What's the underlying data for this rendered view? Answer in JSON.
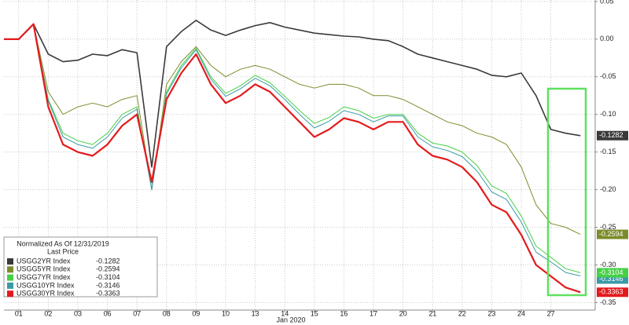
{
  "chart_data": {
    "type": "line",
    "x": [
      -0.5,
      0,
      0.5,
      1,
      1.5,
      2,
      2.5,
      3,
      3.5,
      4,
      4.5,
      5,
      5.5,
      6,
      6.5,
      7,
      7.5,
      8,
      8.5,
      9,
      9.5,
      10,
      10.5,
      11,
      11.5,
      12,
      12.5,
      13,
      13.5,
      14,
      14.5,
      15,
      15.5,
      16,
      16.5,
      17,
      17.5,
      18,
      18.5,
      19
    ],
    "x_label": "Jan 2020",
    "xlim": [
      -0.5,
      19.5
    ],
    "xticks": [
      {
        "value": 0,
        "label": "01"
      },
      {
        "value": 1,
        "label": "02"
      },
      {
        "value": 2,
        "label": "03"
      },
      {
        "value": 3,
        "label": "06"
      },
      {
        "value": 4,
        "label": "07"
      },
      {
        "value": 5,
        "label": "08"
      },
      {
        "value": 6,
        "label": "09"
      },
      {
        "value": 7,
        "label": "10"
      },
      {
        "value": 8,
        "label": "13"
      },
      {
        "value": 9,
        "label": "14"
      },
      {
        "value": 10,
        "label": "15"
      },
      {
        "value": 11,
        "label": "16"
      },
      {
        "value": 12,
        "label": "17"
      },
      {
        "value": 13,
        "label": "20"
      },
      {
        "value": 14,
        "label": "21"
      },
      {
        "value": 15,
        "label": "22"
      },
      {
        "value": 16,
        "label": "23"
      },
      {
        "value": 17,
        "label": "24"
      },
      {
        "value": 18,
        "label": "27"
      }
    ],
    "ylim": [
      -0.36,
      0.052
    ],
    "yticks": [
      0.05,
      {
        "value": 0,
        "label": "0.00"
      },
      -0.05,
      {
        "value": -0.1,
        "label": "-0.10"
      },
      -0.15,
      {
        "value": -0.2,
        "label": "-0.20"
      },
      -0.25,
      {
        "value": -0.3,
        "label": "-0.30"
      },
      -0.35
    ],
    "grid": true,
    "legend_title": "Normalized As Of 12/31/2019",
    "legend_subtitle": "Last Price",
    "series": [
      {
        "name": "USGG2YR Index",
        "color": "#3a3a3a",
        "values": [
          0,
          0,
          0.02,
          -0.02,
          -0.03,
          -0.028,
          -0.02,
          -0.022,
          -0.014,
          -0.018,
          -0.17,
          -0.01,
          0.01,
          0.025,
          0.012,
          0.005,
          0.012,
          0.018,
          0.022,
          0.016,
          0.012,
          0.008,
          0.006,
          0.004,
          0.003,
          0,
          -0.002,
          -0.01,
          -0.02,
          -0.025,
          -0.03,
          -0.035,
          -0.04,
          -0.048,
          -0.05,
          -0.045,
          -0.075,
          -0.12,
          -0.125,
          -0.1282
        ]
      },
      {
        "name": "USGG5YR Index",
        "color": "#7d8c2a",
        "values": [
          0,
          0,
          0.02,
          -0.07,
          -0.1,
          -0.09,
          -0.085,
          -0.09,
          -0.08,
          -0.075,
          -0.2,
          -0.06,
          -0.03,
          -0.01,
          -0.035,
          -0.05,
          -0.04,
          -0.035,
          -0.04,
          -0.05,
          -0.06,
          -0.065,
          -0.06,
          -0.06,
          -0.065,
          -0.075,
          -0.075,
          -0.08,
          -0.09,
          -0.1,
          -0.11,
          -0.115,
          -0.125,
          -0.13,
          -0.14,
          -0.17,
          -0.22,
          -0.245,
          -0.25,
          -0.2594
        ]
      },
      {
        "name": "USGG7YR Index",
        "color": "#46d046",
        "values": [
          0,
          0,
          0.02,
          -0.08,
          -0.125,
          -0.135,
          -0.14,
          -0.125,
          -0.1,
          -0.09,
          -0.2,
          -0.07,
          -0.035,
          -0.012,
          -0.05,
          -0.072,
          -0.062,
          -0.048,
          -0.058,
          -0.076,
          -0.095,
          -0.112,
          -0.104,
          -0.09,
          -0.095,
          -0.105,
          -0.1,
          -0.1,
          -0.125,
          -0.138,
          -0.142,
          -0.15,
          -0.168,
          -0.195,
          -0.205,
          -0.235,
          -0.275,
          -0.29,
          -0.305,
          -0.3104
        ]
      },
      {
        "name": "USGG10YR Index",
        "color": "#3a9aa8",
        "values": [
          0,
          0,
          0.02,
          -0.082,
          -0.13,
          -0.14,
          -0.145,
          -0.13,
          -0.105,
          -0.093,
          -0.2,
          -0.073,
          -0.038,
          -0.014,
          -0.053,
          -0.076,
          -0.066,
          -0.052,
          -0.062,
          -0.08,
          -0.1,
          -0.118,
          -0.109,
          -0.095,
          -0.1,
          -0.11,
          -0.102,
          -0.102,
          -0.13,
          -0.143,
          -0.148,
          -0.156,
          -0.175,
          -0.203,
          -0.213,
          -0.243,
          -0.283,
          -0.296,
          -0.31,
          -0.3146
        ]
      },
      {
        "name": "USGG30YR Index",
        "color": "#e41a1c",
        "values": [
          0,
          0,
          0.02,
          -0.09,
          -0.14,
          -0.15,
          -0.155,
          -0.14,
          -0.115,
          -0.1,
          -0.19,
          -0.08,
          -0.045,
          -0.02,
          -0.06,
          -0.085,
          -0.075,
          -0.06,
          -0.07,
          -0.09,
          -0.11,
          -0.13,
          -0.12,
          -0.105,
          -0.11,
          -0.12,
          -0.11,
          -0.11,
          -0.14,
          -0.155,
          -0.16,
          -0.17,
          -0.19,
          -0.22,
          -0.23,
          -0.26,
          -0.3,
          -0.315,
          -0.33,
          -0.3363
        ]
      }
    ]
  }
}
